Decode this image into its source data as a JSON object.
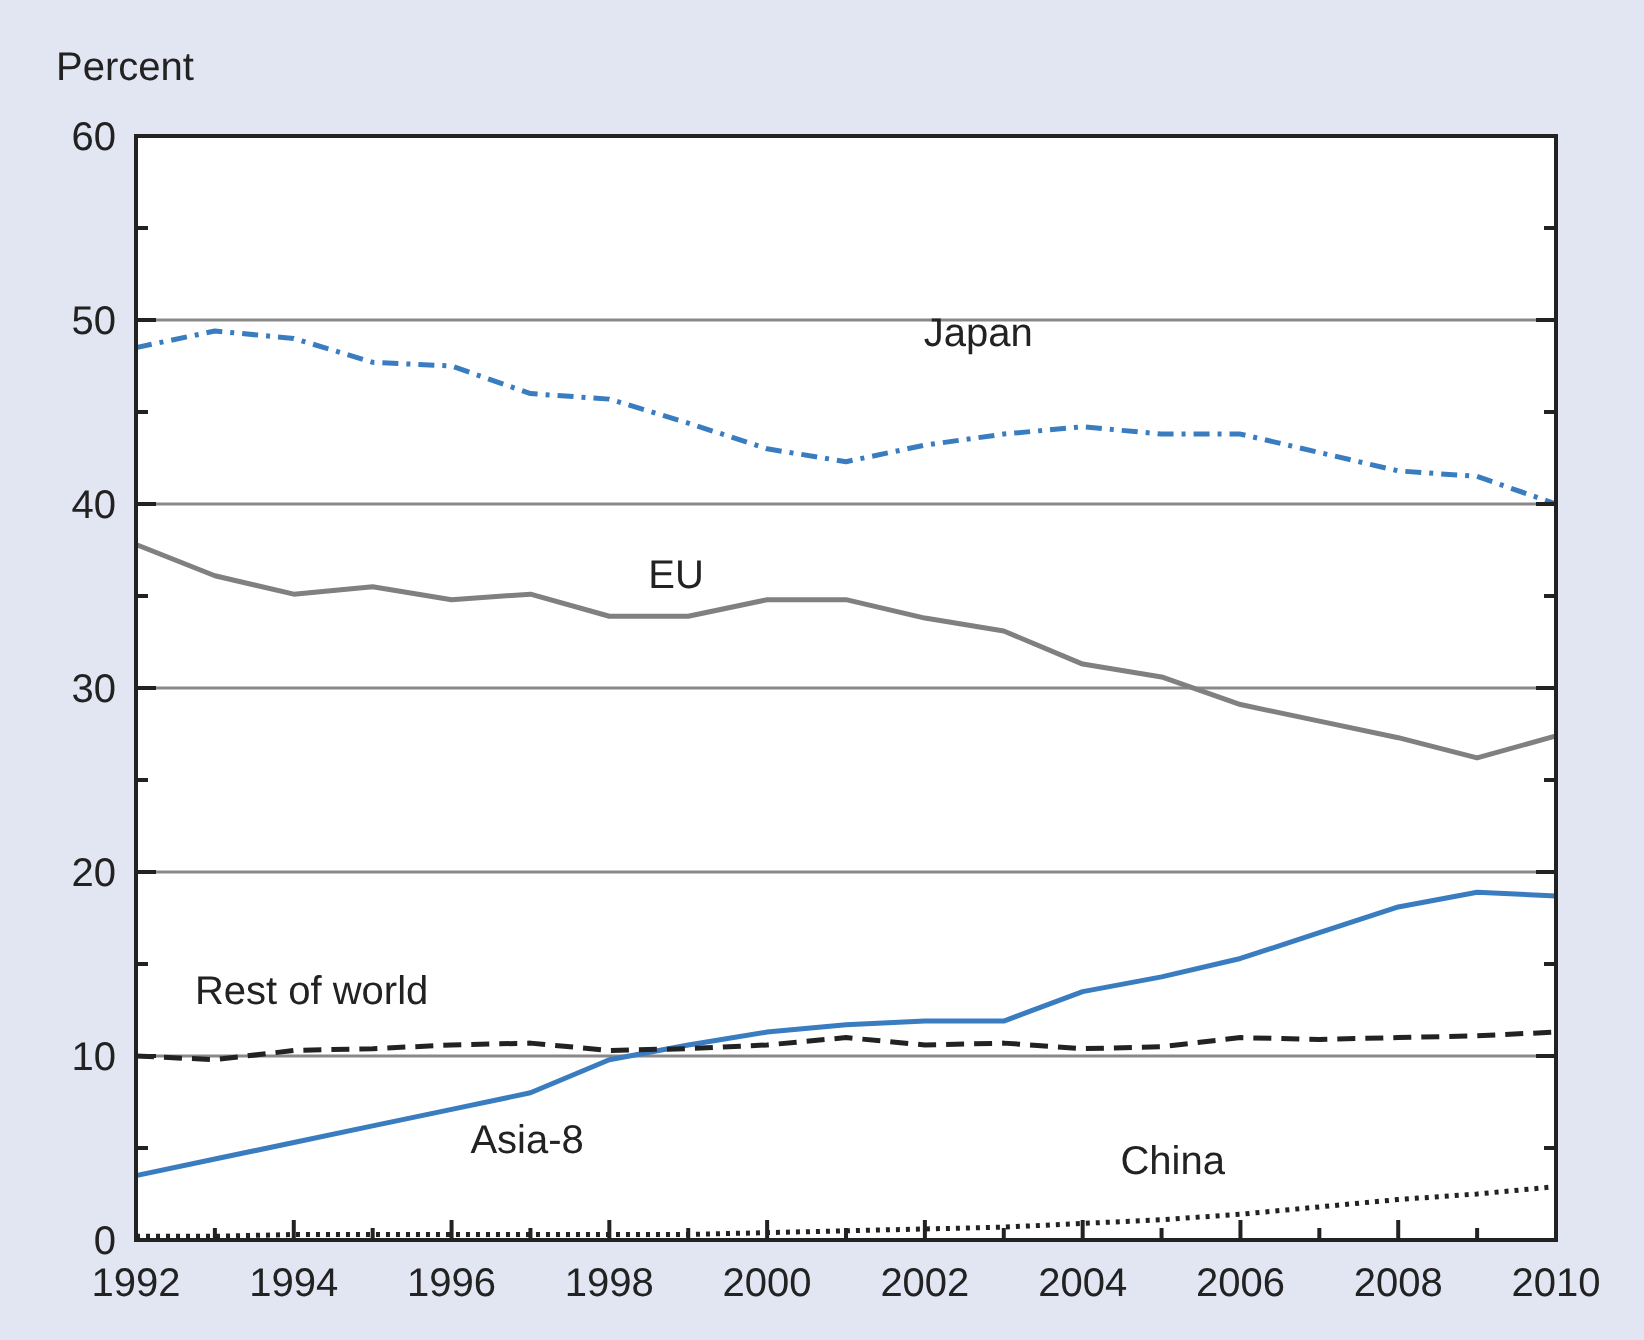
{
  "chart_data": {
    "type": "line",
    "ylabel": "Percent",
    "x": [
      1992,
      1993,
      1994,
      1995,
      1996,
      1997,
      1998,
      1999,
      2000,
      2001,
      2002,
      2003,
      2004,
      2005,
      2006,
      2007,
      2008,
      2009,
      2010
    ],
    "xlim": [
      1992,
      2010
    ],
    "ylim": [
      0,
      60
    ],
    "xticks": [
      1992,
      {
        "value": 1993,
        "label": null
      },
      1994,
      {
        "value": 1995,
        "label": null
      },
      1996,
      {
        "value": 1997,
        "label": null
      },
      1998,
      {
        "value": 1999,
        "label": null
      },
      2000,
      {
        "value": 2001,
        "label": null
      },
      2002,
      {
        "value": 2003,
        "label": null
      },
      2004,
      {
        "value": 2005,
        "label": null
      },
      2006,
      {
        "value": 2007,
        "label": null
      },
      2008,
      {
        "value": 2009,
        "label": null
      },
      2010
    ],
    "yticks": [
      0,
      {
        "value": 5,
        "label": null
      },
      10,
      {
        "value": 15,
        "label": null
      },
      20,
      {
        "value": 25,
        "label": null
      },
      30,
      {
        "value": 35,
        "label": null
      },
      40,
      {
        "value": 45,
        "label": null
      },
      50,
      {
        "value": 55,
        "label": null
      },
      60
    ],
    "grid": "y",
    "legend": false,
    "marker": "none",
    "series": [
      {
        "name": "Japan",
        "color": "#3a7cc0",
        "line_style": "dashdot",
        "values": [
          48.5,
          49.4,
          49,
          47.7,
          47.5,
          46,
          45.7,
          44.4,
          43,
          42.3,
          43.2,
          43.8,
          44.2,
          43.8,
          43.8,
          42.8,
          41.8,
          41.5,
          40
        ]
      },
      {
        "name": "EU",
        "color": "#808080",
        "line_style": "solid",
        "values": [
          37.8,
          36.1,
          35.1,
          35.5,
          34.8,
          35.1,
          33.9,
          33.9,
          34.8,
          34.8,
          33.8,
          33.1,
          31.3,
          30.6,
          29.1,
          28.2,
          27.3,
          26.2,
          27.4
        ]
      },
      {
        "name": "Asia-8",
        "color": "#3a7cc0",
        "line_style": "solid",
        "values": [
          3.5,
          4.4,
          5.3,
          6.2,
          7.1,
          8.0,
          9.8,
          10.6,
          11.3,
          11.7,
          11.9,
          11.9,
          13.5,
          14.3,
          15.3,
          16.7,
          18.1,
          18.9,
          18.7
        ]
      },
      {
        "name": "Rest of world",
        "color": "#222222",
        "line_style": "dashed",
        "values": [
          10,
          9.8,
          10.3,
          10.4,
          10.6,
          10.7,
          10.3,
          10.4,
          10.6,
          11,
          10.6,
          10.7,
          10.4,
          10.5,
          11,
          10.9,
          11,
          11.1,
          11.3
        ]
      },
      {
        "name": "China",
        "color": "#222222",
        "line_style": "dotted",
        "values": [
          0.2,
          0.2,
          0.3,
          0.3,
          0.3,
          0.3,
          0.3,
          0.3,
          0.4,
          0.5,
          0.6,
          0.7,
          0.9,
          1.1,
          1.4,
          1.8,
          2.2,
          2.5,
          2.9
        ]
      }
    ]
  }
}
